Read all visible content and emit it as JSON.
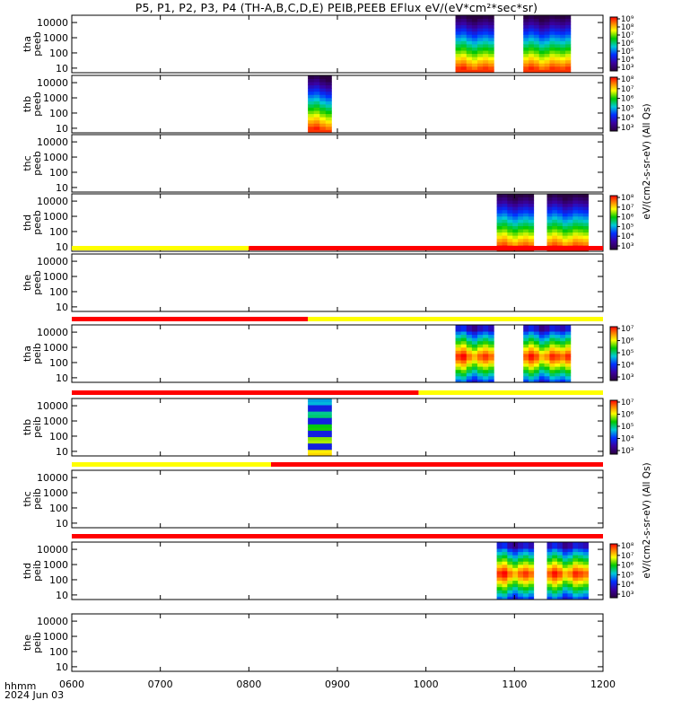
{
  "title": "P5, P1, P2, P3, P4 (TH-A,B,C,D,E) PEIB,PEEB EFlux eV/(eV*cm²*sec*sr)",
  "time_axis": {
    "label_top": "hhmm",
    "label_bottom": "2024 Jun 03",
    "ticks": [
      "0600",
      "0700",
      "0800",
      "0900",
      "1000",
      "1100",
      "1200"
    ],
    "range_hours": [
      6,
      12
    ]
  },
  "colorbar_labels": {
    "electron_units": "eV/(cm2-s-sr-eV) (All Qs)",
    "ion_units": "eV/(cm2-s-sr-eV) (All Qs)"
  },
  "colors": {
    "mode_red": "#ff0000",
    "mode_yellow": "#ffff00",
    "frame": "#000000"
  },
  "chart_data": [
    {
      "type": "heatmap",
      "panel": "tha-peeb",
      "ylabel": [
        "tha",
        "peeb"
      ],
      "yscale": "log",
      "yticks": [
        "10",
        "100",
        "1000",
        "10000"
      ],
      "ylim": [
        5,
        30000
      ],
      "intervals": [
        {
          "start": "10:20",
          "end": "10:46"
        },
        {
          "start": "11:06",
          "end": "11:38"
        }
      ],
      "colorbar": {
        "ticks": [
          "10³",
          "10⁴",
          "10⁵",
          "10⁶",
          "10⁷",
          "10⁸",
          "10⁹"
        ]
      },
      "palette": "electron"
    },
    {
      "type": "heatmap",
      "panel": "thb-peeb",
      "ylabel": [
        "thb",
        "peeb"
      ],
      "yscale": "log",
      "yticks": [
        "10",
        "100",
        "1000",
        "10000"
      ],
      "ylim": [
        5,
        30000
      ],
      "intervals": [
        {
          "start": "08:40",
          "end": "08:56"
        }
      ],
      "colorbar": {
        "ticks": [
          "10³",
          "10⁴",
          "10⁵",
          "10⁶",
          "10⁷",
          "10⁸"
        ]
      },
      "palette": "electron"
    },
    {
      "type": "heatmap",
      "panel": "thc-peeb",
      "ylabel": [
        "thc",
        "peeb"
      ],
      "yscale": "log",
      "yticks": [
        "10",
        "100",
        "1000",
        "10000"
      ],
      "ylim": [
        5,
        30000
      ],
      "intervals": [],
      "colorbar": null,
      "palette": "electron"
    },
    {
      "type": "heatmap",
      "panel": "thd-peeb",
      "ylabel": [
        "thd",
        "peeb"
      ],
      "yscale": "log",
      "yticks": [
        "10",
        "100",
        "1000",
        "10000"
      ],
      "ylim": [
        5,
        30000
      ],
      "intervals": [
        {
          "start": "10:48",
          "end": "11:13"
        },
        {
          "start": "11:22",
          "end": "11:50"
        }
      ],
      "colorbar": {
        "ticks": [
          "10³",
          "10⁴",
          "10⁵",
          "10⁶",
          "10⁷",
          "10⁸"
        ]
      },
      "palette": "electron"
    },
    {
      "type": "heatmap",
      "panel": "the-peeb",
      "ylabel": [
        "the",
        "peeb"
      ],
      "yscale": "log",
      "yticks": [
        "10",
        "100",
        "1000",
        "10000"
      ],
      "ylim": [
        5,
        30000
      ],
      "intervals": [],
      "colorbar": null,
      "palette": "electron",
      "mode_bar": [
        {
          "start": "06:00",
          "end": "08:00",
          "color": "yellow"
        },
        {
          "start": "08:00",
          "end": "12:00",
          "color": "red"
        }
      ]
    },
    {
      "type": "heatmap",
      "panel": "tha-peib",
      "ylabel": [
        "tha",
        "peib"
      ],
      "yscale": "log",
      "yticks": [
        "10",
        "100",
        "1000",
        "10000"
      ],
      "ylim": [
        5,
        30000
      ],
      "intervals": [
        {
          "start": "10:20",
          "end": "10:46"
        },
        {
          "start": "11:06",
          "end": "11:38"
        }
      ],
      "colorbar": {
        "ticks": [
          "10³",
          "10⁴",
          "10⁵",
          "10⁶",
          "10⁷"
        ]
      },
      "palette": "ion",
      "mode_bar": [
        {
          "start": "06:00",
          "end": "08:40",
          "color": "red"
        },
        {
          "start": "08:40",
          "end": "12:00",
          "color": "yellow"
        }
      ]
    },
    {
      "type": "heatmap",
      "panel": "thb-peib",
      "ylabel": [
        "thb",
        "peib"
      ],
      "yscale": "log",
      "yticks": [
        "10",
        "100",
        "1000",
        "10000"
      ],
      "ylim": [
        5,
        30000
      ],
      "intervals": [
        {
          "start": "08:40",
          "end": "08:56"
        }
      ],
      "colorbar": {
        "ticks": [
          "10³",
          "10⁴",
          "10⁵",
          "10⁶",
          "10⁷"
        ]
      },
      "palette": "ion_banded",
      "mode_bar": [
        {
          "start": "06:00",
          "end": "09:55",
          "color": "red"
        },
        {
          "start": "09:55",
          "end": "12:00",
          "color": "yellow"
        }
      ]
    },
    {
      "type": "heatmap",
      "panel": "thc-peib",
      "ylabel": [
        "thc",
        "peib"
      ],
      "yscale": "log",
      "yticks": [
        "10",
        "100",
        "1000",
        "10000"
      ],
      "ylim": [
        5,
        30000
      ],
      "intervals": [],
      "colorbar": null,
      "palette": "ion",
      "mode_bar": [
        {
          "start": "06:00",
          "end": "08:15",
          "color": "yellow"
        },
        {
          "start": "08:15",
          "end": "12:00",
          "color": "red"
        }
      ]
    },
    {
      "type": "heatmap",
      "panel": "thd-peib",
      "ylabel": [
        "thd",
        "peib"
      ],
      "yscale": "log",
      "yticks": [
        "10",
        "100",
        "1000",
        "10000"
      ],
      "ylim": [
        5,
        30000
      ],
      "intervals": [
        {
          "start": "10:48",
          "end": "11:13"
        },
        {
          "start": "11:22",
          "end": "11:50"
        }
      ],
      "colorbar": {
        "ticks": [
          "10³",
          "10⁴",
          "10⁵",
          "10⁶",
          "10⁷",
          "10⁸"
        ]
      },
      "palette": "ion",
      "mode_bar": [
        {
          "start": "06:00",
          "end": "12:00",
          "color": "red"
        }
      ]
    },
    {
      "type": "heatmap",
      "panel": "the-peib",
      "ylabel": [
        "the",
        "peib"
      ],
      "yscale": "log",
      "yticks": [
        "10",
        "100",
        "1000",
        "10000"
      ],
      "ylim": [
        5,
        30000
      ],
      "intervals": [],
      "colorbar": null,
      "palette": "ion"
    }
  ]
}
